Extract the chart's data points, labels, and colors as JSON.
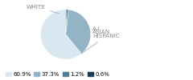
{
  "labels": [
    "WHITE",
    "HISPANIC",
    "A.I.",
    "ASIAN"
  ],
  "sizes": [
    60.9,
    37.3,
    1.2,
    0.6
  ],
  "colors": [
    "#d9e8f0",
    "#92b4c5",
    "#4d7d96",
    "#1c3d52"
  ],
  "legend_labels": [
    "60.9%",
    "37.3%",
    "1.2%",
    "0.6%"
  ],
  "startangle": 90,
  "figsize": [
    2.4,
    1.0
  ],
  "dpi": 100,
  "label_color": "#888888",
  "line_color": "#aaaaaa",
  "label_fontsize": 5.2
}
